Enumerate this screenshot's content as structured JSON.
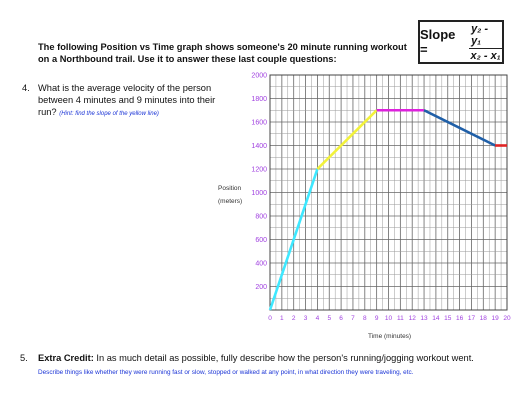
{
  "slope_formula": {
    "label": "Slope =",
    "numerator": "y₂ - y₁",
    "denominator": "x₂ - x₁"
  },
  "intro": "The following Position vs Time graph shows someone's 20 minute running workout on a Northbound trail. Use it to answer these last couple questions:",
  "question4": {
    "number": "4.",
    "text": "What is the average velocity of the person between 4 minutes and 9 minutes into their run?",
    "hint": "(Hint: find the slope of the yellow line)"
  },
  "question5": {
    "number": "5.",
    "lead": "Extra Credit:",
    "text": " In as much detail as possible, fully describe how the person's running/jogging workout went.",
    "note": "Describe things like whether they were running fast or slow, stopped or walked at any point, in what direction they were traveling, etc."
  },
  "chart_data": {
    "type": "line",
    "xlabel": "Time (minutes)",
    "ylabel": [
      "Position",
      "(meters)"
    ],
    "xlim": [
      0,
      20
    ],
    "ylim": [
      0,
      2000
    ],
    "x_ticks": [
      0,
      1,
      2,
      3,
      4,
      5,
      6,
      7,
      8,
      9,
      10,
      11,
      12,
      13,
      14,
      15,
      16,
      17,
      18,
      19,
      20
    ],
    "y_ticks": [
      200,
      400,
      600,
      800,
      1000,
      1200,
      1400,
      1600,
      1800,
      2000
    ],
    "grid": true,
    "tick_color": "#a040e0",
    "segments": [
      {
        "x": [
          0,
          4
        ],
        "y": [
          0,
          1200
        ],
        "color": "#3ee8ff"
      },
      {
        "x": [
          4,
          9
        ],
        "y": [
          1200,
          1700
        ],
        "color": "#f2f23a"
      },
      {
        "x": [
          9,
          13
        ],
        "y": [
          1700,
          1700
        ],
        "color": "#dd22dd"
      },
      {
        "x": [
          13,
          19
        ],
        "y": [
          1700,
          1400
        ],
        "color": "#1f5fa8"
      },
      {
        "x": [
          19,
          20
        ],
        "y": [
          1400,
          1400
        ],
        "color": "#e02424"
      }
    ]
  }
}
